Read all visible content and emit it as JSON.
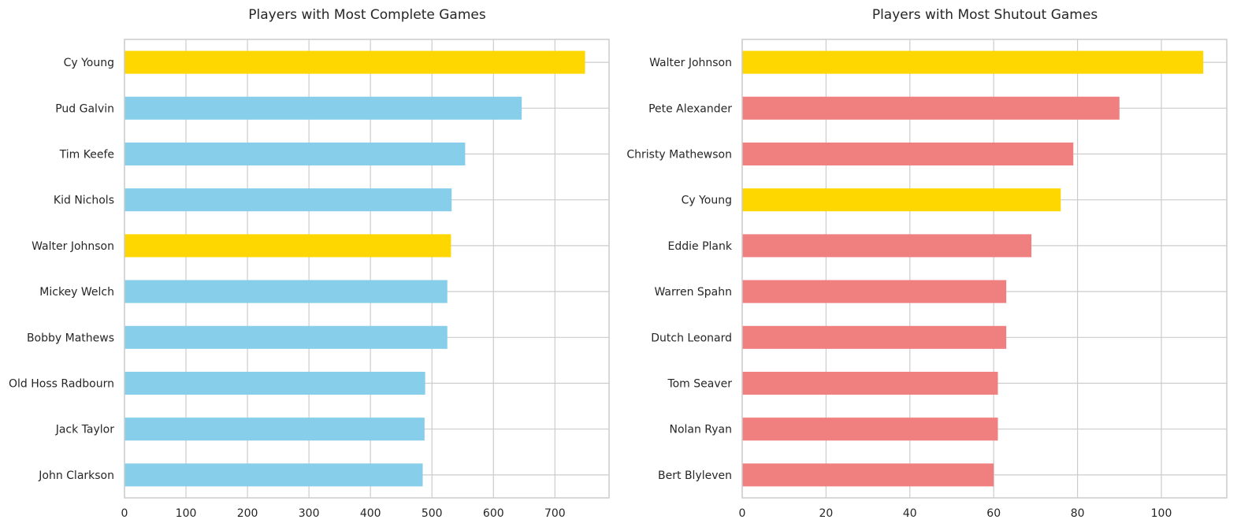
{
  "chart_data": [
    {
      "type": "bar",
      "orientation": "horizontal",
      "title": "Players with Most Complete Games",
      "categories": [
        "Cy Young",
        "Pud Galvin",
        "Tim Keefe",
        "Kid Nichols",
        "Walter Johnson",
        "Mickey Welch",
        "Bobby Mathews",
        "Old Hoss Radbourn",
        "Jack Taylor",
        "John Clarkson"
      ],
      "values": [
        749,
        646,
        554,
        532,
        531,
        525,
        525,
        489,
        488,
        485
      ],
      "highlight": [
        "Cy Young",
        "Walter Johnson"
      ],
      "xticks": [
        "0",
        "100",
        "200",
        "300",
        "400",
        "500",
        "600",
        "700"
      ],
      "xlim": [
        0,
        788
      ],
      "grid": true,
      "colors": {
        "bar": "#87CEEB",
        "highlight": "#FFD700"
      }
    },
    {
      "type": "bar",
      "orientation": "horizontal",
      "title": "Players with Most Shutout Games",
      "categories": [
        "Walter Johnson",
        "Pete Alexander",
        "Christy Mathewson",
        "Cy Young",
        "Eddie Plank",
        "Warren Spahn",
        "Dutch Leonard",
        "Tom Seaver",
        "Nolan Ryan",
        "Bert Blyleven"
      ],
      "values": [
        110,
        90,
        79,
        76,
        69,
        63,
        63,
        61,
        61,
        60
      ],
      "highlight": [
        "Walter Johnson",
        "Cy Young"
      ],
      "xticks": [
        "0",
        "20",
        "40",
        "60",
        "80",
        "100"
      ],
      "xlim": [
        0,
        115.6
      ],
      "grid": true,
      "colors": {
        "bar": "#F08080",
        "highlight": "#FFD700"
      }
    }
  ]
}
